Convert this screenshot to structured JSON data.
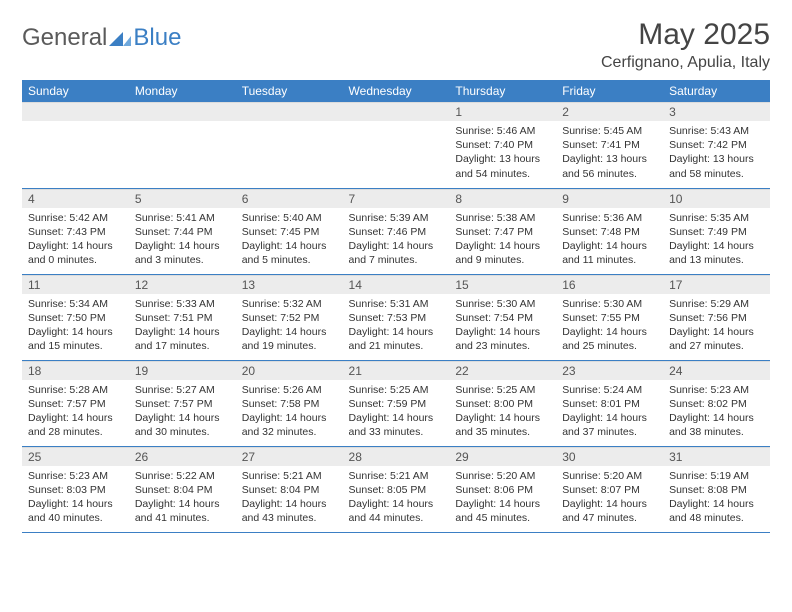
{
  "brand": {
    "part1": "General",
    "part2": "Blue"
  },
  "title": "May 2025",
  "location": "Cerfignano, Apulia, Italy",
  "colors": {
    "header_bg": "#3b7fc4",
    "header_fg": "#ffffff",
    "daynum_bg": "#ececec",
    "border": "#3b7fc4",
    "text": "#333333",
    "logo_gray": "#5a5a5a",
    "logo_blue": "#3b7fc4"
  },
  "typography": {
    "title_fontsize": 30,
    "location_fontsize": 16,
    "header_fontsize": 12,
    "daynum_fontsize": 12,
    "cell_fontsize": 10.5
  },
  "weekdays": [
    "Sunday",
    "Monday",
    "Tuesday",
    "Wednesday",
    "Thursday",
    "Friday",
    "Saturday"
  ],
  "weeks": [
    [
      null,
      null,
      null,
      null,
      {
        "n": "1",
        "sr": "5:46 AM",
        "ss": "7:40 PM",
        "dl": "13 hours and 54 minutes."
      },
      {
        "n": "2",
        "sr": "5:45 AM",
        "ss": "7:41 PM",
        "dl": "13 hours and 56 minutes."
      },
      {
        "n": "3",
        "sr": "5:43 AM",
        "ss": "7:42 PM",
        "dl": "13 hours and 58 minutes."
      }
    ],
    [
      {
        "n": "4",
        "sr": "5:42 AM",
        "ss": "7:43 PM",
        "dl": "14 hours and 0 minutes."
      },
      {
        "n": "5",
        "sr": "5:41 AM",
        "ss": "7:44 PM",
        "dl": "14 hours and 3 minutes."
      },
      {
        "n": "6",
        "sr": "5:40 AM",
        "ss": "7:45 PM",
        "dl": "14 hours and 5 minutes."
      },
      {
        "n": "7",
        "sr": "5:39 AM",
        "ss": "7:46 PM",
        "dl": "14 hours and 7 minutes."
      },
      {
        "n": "8",
        "sr": "5:38 AM",
        "ss": "7:47 PM",
        "dl": "14 hours and 9 minutes."
      },
      {
        "n": "9",
        "sr": "5:36 AM",
        "ss": "7:48 PM",
        "dl": "14 hours and 11 minutes."
      },
      {
        "n": "10",
        "sr": "5:35 AM",
        "ss": "7:49 PM",
        "dl": "14 hours and 13 minutes."
      }
    ],
    [
      {
        "n": "11",
        "sr": "5:34 AM",
        "ss": "7:50 PM",
        "dl": "14 hours and 15 minutes."
      },
      {
        "n": "12",
        "sr": "5:33 AM",
        "ss": "7:51 PM",
        "dl": "14 hours and 17 minutes."
      },
      {
        "n": "13",
        "sr": "5:32 AM",
        "ss": "7:52 PM",
        "dl": "14 hours and 19 minutes."
      },
      {
        "n": "14",
        "sr": "5:31 AM",
        "ss": "7:53 PM",
        "dl": "14 hours and 21 minutes."
      },
      {
        "n": "15",
        "sr": "5:30 AM",
        "ss": "7:54 PM",
        "dl": "14 hours and 23 minutes."
      },
      {
        "n": "16",
        "sr": "5:30 AM",
        "ss": "7:55 PM",
        "dl": "14 hours and 25 minutes."
      },
      {
        "n": "17",
        "sr": "5:29 AM",
        "ss": "7:56 PM",
        "dl": "14 hours and 27 minutes."
      }
    ],
    [
      {
        "n": "18",
        "sr": "5:28 AM",
        "ss": "7:57 PM",
        "dl": "14 hours and 28 minutes."
      },
      {
        "n": "19",
        "sr": "5:27 AM",
        "ss": "7:57 PM",
        "dl": "14 hours and 30 minutes."
      },
      {
        "n": "20",
        "sr": "5:26 AM",
        "ss": "7:58 PM",
        "dl": "14 hours and 32 minutes."
      },
      {
        "n": "21",
        "sr": "5:25 AM",
        "ss": "7:59 PM",
        "dl": "14 hours and 33 minutes."
      },
      {
        "n": "22",
        "sr": "5:25 AM",
        "ss": "8:00 PM",
        "dl": "14 hours and 35 minutes."
      },
      {
        "n": "23",
        "sr": "5:24 AM",
        "ss": "8:01 PM",
        "dl": "14 hours and 37 minutes."
      },
      {
        "n": "24",
        "sr": "5:23 AM",
        "ss": "8:02 PM",
        "dl": "14 hours and 38 minutes."
      }
    ],
    [
      {
        "n": "25",
        "sr": "5:23 AM",
        "ss": "8:03 PM",
        "dl": "14 hours and 40 minutes."
      },
      {
        "n": "26",
        "sr": "5:22 AM",
        "ss": "8:04 PM",
        "dl": "14 hours and 41 minutes."
      },
      {
        "n": "27",
        "sr": "5:21 AM",
        "ss": "8:04 PM",
        "dl": "14 hours and 43 minutes."
      },
      {
        "n": "28",
        "sr": "5:21 AM",
        "ss": "8:05 PM",
        "dl": "14 hours and 44 minutes."
      },
      {
        "n": "29",
        "sr": "5:20 AM",
        "ss": "8:06 PM",
        "dl": "14 hours and 45 minutes."
      },
      {
        "n": "30",
        "sr": "5:20 AM",
        "ss": "8:07 PM",
        "dl": "14 hours and 47 minutes."
      },
      {
        "n": "31",
        "sr": "5:19 AM",
        "ss": "8:08 PM",
        "dl": "14 hours and 48 minutes."
      }
    ]
  ],
  "labels": {
    "sunrise": "Sunrise:",
    "sunset": "Sunset:",
    "daylight": "Daylight:"
  }
}
